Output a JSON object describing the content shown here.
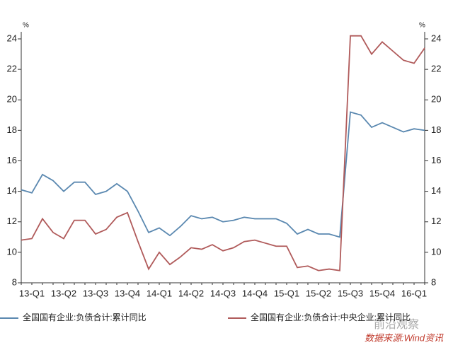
{
  "chart_data": {
    "type": "line",
    "y_unit": "%",
    "y2_unit": "%",
    "categories": [
      null,
      "13-Q1",
      null,
      null,
      "13-Q2",
      null,
      null,
      "13-Q3",
      null,
      null,
      "13-Q4",
      null,
      null,
      "14-Q1",
      null,
      null,
      "14-Q2",
      null,
      null,
      "14-Q3",
      null,
      null,
      "14-Q4",
      null,
      null,
      "15-Q1",
      null,
      null,
      "15-Q2",
      null,
      null,
      "15-Q3",
      null,
      null,
      "15-Q4",
      null,
      null,
      "16-Q1",
      null
    ],
    "series": [
      {
        "name": "全国国有企业:负债合计:累计同比",
        "color": "#5a88b0",
        "values": [
          14.1,
          13.9,
          15.1,
          14.7,
          14.0,
          14.6,
          14.6,
          13.8,
          14.0,
          14.5,
          14.0,
          12.7,
          11.3,
          11.6,
          11.1,
          11.7,
          12.4,
          12.2,
          12.3,
          12.0,
          12.1,
          12.3,
          12.2,
          12.2,
          12.2,
          11.9,
          11.2,
          11.5,
          11.2,
          11.2,
          11.0,
          19.2,
          19.0,
          18.2,
          18.5,
          18.2,
          17.9,
          18.1,
          18.0
        ]
      },
      {
        "name": "全国国有企业:负债合计:中央企业:累计同比",
        "color": "#b05a5a",
        "axis": "y2",
        "values": [
          10.8,
          10.9,
          12.2,
          11.3,
          10.9,
          12.1,
          12.1,
          11.2,
          11.5,
          12.3,
          12.6,
          10.7,
          8.9,
          10.0,
          9.2,
          9.7,
          10.3,
          10.2,
          10.5,
          10.1,
          10.3,
          10.7,
          10.8,
          10.6,
          10.4,
          10.4,
          9.0,
          9.1,
          8.8,
          8.9,
          8.8,
          24.2,
          24.2,
          23.0,
          23.8,
          23.2,
          22.6,
          22.4,
          23.4
        ]
      }
    ],
    "ylim": [
      8,
      24
    ],
    "yticks": [
      8,
      10,
      12,
      14,
      16,
      18,
      20,
      22,
      24
    ],
    "y2lim": [
      8,
      24
    ],
    "y2ticks": [
      8,
      10,
      12,
      14,
      16,
      18,
      20,
      22,
      24
    ],
    "watermark": "前沿观察",
    "source": "数据来源:Wind资讯"
  }
}
